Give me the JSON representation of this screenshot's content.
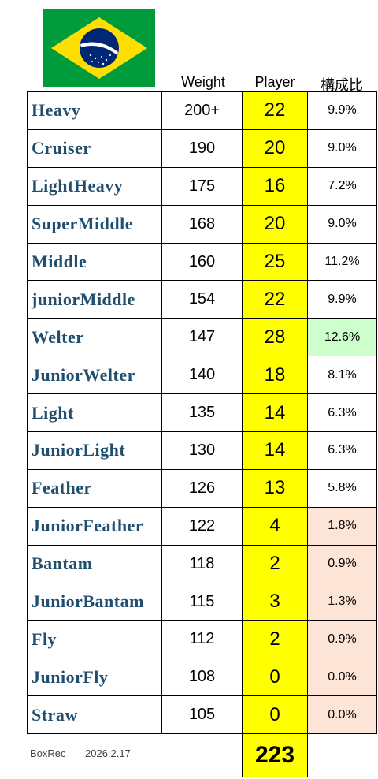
{
  "header": {
    "columns": [
      "Weight",
      "Player",
      "構成比"
    ]
  },
  "table": {
    "rows": [
      [
        "Heavy",
        "200+",
        "22",
        "9.9%"
      ],
      [
        "Cruiser",
        "190",
        "20",
        "9.0%"
      ],
      [
        "LightHeavy",
        "175",
        "16",
        "7.2%"
      ],
      [
        "SuperMiddle",
        "168",
        "20",
        "9.0%"
      ],
      [
        "Middle",
        "160",
        "25",
        "11.2%"
      ],
      [
        "juniorMiddle",
        "154",
        "22",
        "9.9%"
      ],
      [
        "Welter",
        "147",
        "28",
        "12.6%"
      ],
      [
        "JuniorWelter",
        "140",
        "18",
        "8.1%"
      ],
      [
        "Light",
        "135",
        "14",
        "6.3%"
      ],
      [
        "JuniorLight",
        "130",
        "14",
        "6.3%"
      ],
      [
        "Feather",
        "126",
        "13",
        "5.8%"
      ],
      [
        "JuniorFeather",
        "122",
        "4",
        "1.8%"
      ],
      [
        "Bantam",
        "118",
        "2",
        "0.9%"
      ],
      [
        "JuniorBantam",
        "115",
        "3",
        "1.3%"
      ],
      [
        "Fly",
        "112",
        "2",
        "0.9%"
      ],
      [
        "JuniorFly",
        "108",
        "0",
        "0.0%"
      ],
      [
        "Straw",
        "105",
        "0",
        "0.0%"
      ]
    ]
  },
  "footer": {
    "source": "BoxRec",
    "date": "2026.2.17",
    "total": "223"
  }
}
